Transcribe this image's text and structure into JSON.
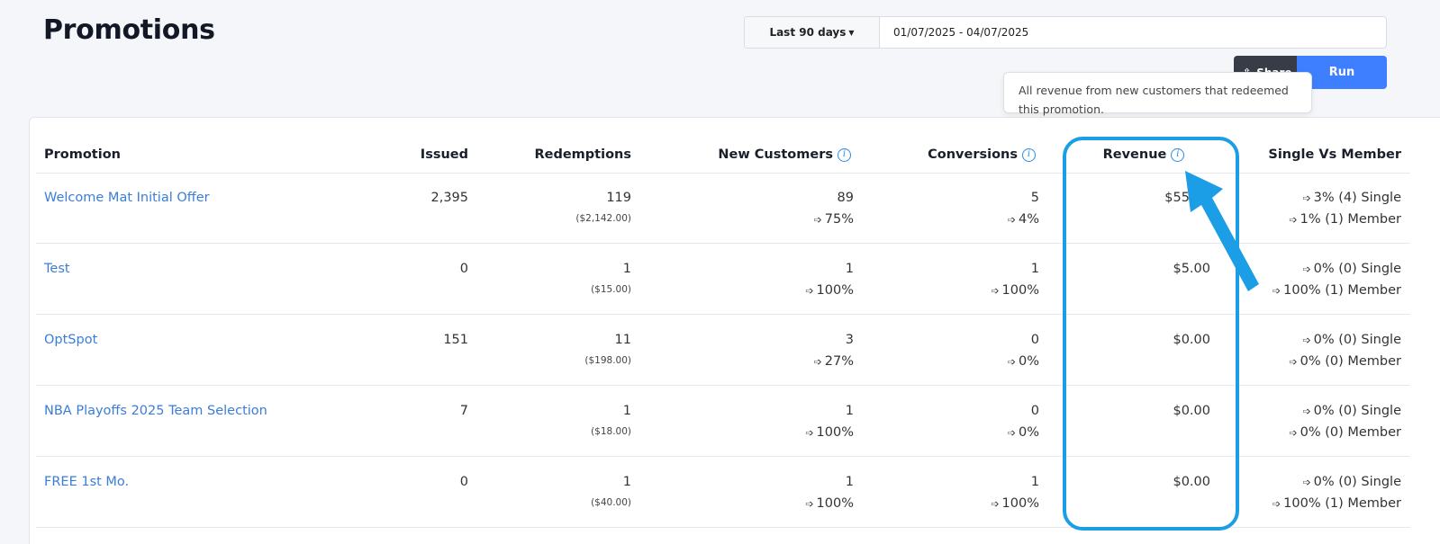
{
  "page": {
    "title": "Promotions"
  },
  "date_range": {
    "preset_label": "Last 90 days",
    "value": "01/07/2025 - 04/07/2025"
  },
  "actions": {
    "share_label": "Share",
    "run_label": "Run"
  },
  "tooltip": {
    "text": "All revenue from new customers that redeemed this promotion."
  },
  "table": {
    "headers": {
      "promotion": "Promotion",
      "issued": "Issued",
      "redemptions": "Redemptions",
      "new_customers": "New Customers",
      "conversions": "Conversions",
      "revenue": "Revenue",
      "single_vs_member": "Single Vs Member"
    },
    "rows": [
      {
        "promotion": "Welcome Mat Initial Offer",
        "issued": "2,395",
        "redemptions": "119",
        "redemptions_amount": "($2,142.00)",
        "new_customers": "89",
        "new_customers_pct": "75%",
        "conversions": "5",
        "conversions_pct": "4%",
        "revenue": "$55.00",
        "single": "3% (4) Single",
        "member": "1% (1) Member"
      },
      {
        "promotion": "Test",
        "issued": "0",
        "redemptions": "1",
        "redemptions_amount": "($15.00)",
        "new_customers": "1",
        "new_customers_pct": "100%",
        "conversions": "1",
        "conversions_pct": "100%",
        "revenue": "$5.00",
        "single": "0% (0) Single",
        "member": "100% (1) Member"
      },
      {
        "promotion": "OptSpot",
        "issued": "151",
        "redemptions": "11",
        "redemptions_amount": "($198.00)",
        "new_customers": "3",
        "new_customers_pct": "27%",
        "conversions": "0",
        "conversions_pct": "0%",
        "revenue": "$0.00",
        "single": "0% (0) Single",
        "member": "0% (0) Member"
      },
      {
        "promotion": "NBA Playoffs 2025 Team Selection",
        "issued": "7",
        "redemptions": "1",
        "redemptions_amount": "($18.00)",
        "new_customers": "1",
        "new_customers_pct": "100%",
        "conversions": "0",
        "conversions_pct": "0%",
        "revenue": "$0.00",
        "single": "0% (0) Single",
        "member": "0% (0) Member"
      },
      {
        "promotion": "FREE 1st Mo.",
        "issued": "0",
        "redemptions": "1",
        "redemptions_amount": "($40.00)",
        "new_customers": "1",
        "new_customers_pct": "100%",
        "conversions": "1",
        "conversions_pct": "100%",
        "revenue": "$0.00",
        "single": "0% (0) Single",
        "member": "100% (1) Member"
      }
    ]
  },
  "colors": {
    "link": "#3b7dd8",
    "run_button": "#3d7fff",
    "highlight": "#1c9ee6",
    "info_icon": "#2b8be6"
  },
  "icons": {
    "info": "info-icon",
    "pct_arrow": "arrow-right-icon",
    "share": "share-icon"
  }
}
